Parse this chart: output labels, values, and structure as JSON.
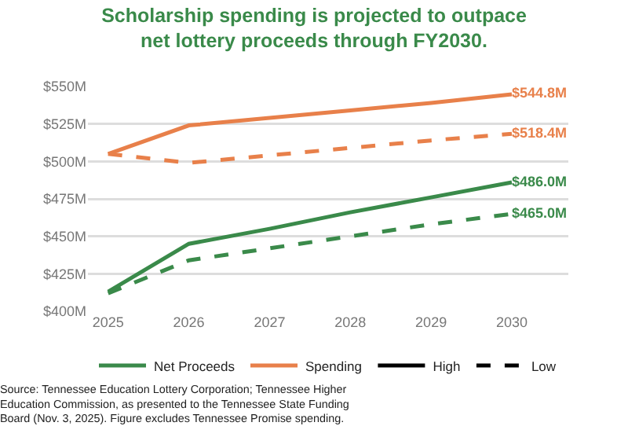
{
  "chart_data": {
    "type": "line",
    "title": "Scholarship spending is projected to outpace\nnet lottery proceeds through FY2030.",
    "x": [
      2025,
      2026,
      2027,
      2028,
      2029,
      2030
    ],
    "xlim": [
      2024.75,
      2030.7
    ],
    "xticks": [
      2025,
      2026,
      2027,
      2028,
      2029,
      2030
    ],
    "ylim": [
      400,
      550
    ],
    "yticks": [
      {
        "value": 400,
        "label": "$400M"
      },
      {
        "value": 425,
        "label": "$425M"
      },
      {
        "value": 450,
        "label": "$450M"
      },
      {
        "value": 475,
        "label": "$475M"
      },
      {
        "value": 500,
        "label": "$500M"
      },
      {
        "value": 525,
        "label": "$525M"
      },
      {
        "value": 550,
        "label": "$550M"
      }
    ],
    "grid": "y",
    "legend": "bottom",
    "marker": "none",
    "series": [
      {
        "name": "Net Proceeds",
        "color": "#3a8a4a",
        "line_style": "solid",
        "values": [
          413,
          445,
          455,
          466,
          476,
          486.0
        ],
        "value_labels": [
          null,
          null,
          null,
          null,
          null,
          "$486.0M"
        ]
      },
      {
        "name": "Spending",
        "color": "#e8804a",
        "line_style": "solid",
        "values": [
          505,
          524,
          529,
          534,
          539,
          544.8
        ],
        "value_labels": [
          null,
          null,
          null,
          null,
          null,
          "$544.8M"
        ]
      },
      {
        "color": "#3a8a4a",
        "line_style": "dashed",
        "values": [
          412,
          434,
          442,
          450,
          458,
          465.0
        ],
        "value_labels": [
          null,
          null,
          null,
          null,
          null,
          "$465.0M"
        ]
      },
      {
        "color": "#e8804a",
        "line_style": "dashed",
        "values": [
          505,
          499,
          504,
          509,
          514,
          518.4
        ],
        "value_labels": [
          null,
          null,
          null,
          null,
          null,
          "$518.4M"
        ]
      }
    ],
    "annotations": [
      "High",
      "Low",
      "Source: Tennessee Education Lottery Corporation; Tennessee Higher\nEducation Commission, as presented to the Tennessee State Funding\nBoard (Nov. 3, 2025). Figure excludes Tennessee Promise spending."
    ]
  }
}
